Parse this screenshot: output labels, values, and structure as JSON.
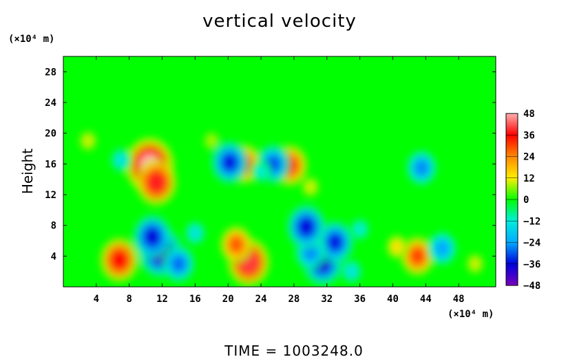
{
  "chart_data": {
    "type": "heatmap",
    "title": "vertical velocity",
    "ylabel": "Height",
    "xlabel": "",
    "y_unit": "(×10⁴ m)",
    "x_unit": "(×10⁴ m)",
    "footer": "TIME  =  1003248.0",
    "xlim": [
      0,
      52.5
    ],
    "ylim": [
      0,
      30
    ],
    "x_ticks": [
      4,
      8,
      12,
      16,
      20,
      24,
      28,
      32,
      36,
      40,
      44,
      48
    ],
    "y_ticks": [
      4,
      8,
      12,
      16,
      20,
      24,
      28
    ],
    "colorbar": {
      "range": [
        -48,
        48
      ],
      "ticks": [
        48,
        36,
        24,
        12,
        0,
        -12,
        -24,
        -36,
        -48
      ],
      "tick_labels": [
        "48",
        "36",
        "24",
        "12",
        "0",
        "−12",
        "−24",
        "−36",
        "−48"
      ],
      "colors": [
        "#ffb0b0",
        "#ff0000",
        "#ff8800",
        "#ffee00",
        "#00ff00",
        "#00eedd",
        "#00aaff",
        "#0000dd",
        "#7700bb"
      ]
    },
    "background_value": 0,
    "features": [
      {
        "x": 10.5,
        "y": 15.8,
        "value": 48
      },
      {
        "x": 11.3,
        "y": 13.6,
        "value": 38
      },
      {
        "x": 6.8,
        "y": 3.5,
        "value": 36
      },
      {
        "x": 22.5,
        "y": 3.2,
        "value": 40
      },
      {
        "x": 21.0,
        "y": 5.5,
        "value": 28
      },
      {
        "x": 43.0,
        "y": 4.0,
        "value": 30
      },
      {
        "x": 40.5,
        "y": 5.2,
        "value": 14
      },
      {
        "x": 22.0,
        "y": 16.0,
        "value": 30
      },
      {
        "x": 27.5,
        "y": 15.8,
        "value": 32
      },
      {
        "x": 11.8,
        "y": 4.5,
        "value": -42
      },
      {
        "x": 10.8,
        "y": 6.5,
        "value": -36
      },
      {
        "x": 14.0,
        "y": 3.0,
        "value": -28
      },
      {
        "x": 31.5,
        "y": 3.2,
        "value": -38
      },
      {
        "x": 33.0,
        "y": 5.8,
        "value": -34
      },
      {
        "x": 30.0,
        "y": 4.5,
        "value": -26
      },
      {
        "x": 29.5,
        "y": 7.8,
        "value": -36
      },
      {
        "x": 20.2,
        "y": 16.2,
        "value": -34
      },
      {
        "x": 25.5,
        "y": 16.0,
        "value": -30
      },
      {
        "x": 43.5,
        "y": 15.5,
        "value": -26
      },
      {
        "x": 46.0,
        "y": 5.0,
        "value": -24
      },
      {
        "x": 16.0,
        "y": 7.0,
        "value": -14
      },
      {
        "x": 36.0,
        "y": 7.5,
        "value": -12
      },
      {
        "x": 24.0,
        "y": 15.0,
        "value": -12
      },
      {
        "x": 7.0,
        "y": 16.5,
        "value": -14
      },
      {
        "x": 35.0,
        "y": 2.0,
        "value": -14
      },
      {
        "x": 3.0,
        "y": 19.0,
        "value": 10
      },
      {
        "x": 18.0,
        "y": 19.0,
        "value": 8
      },
      {
        "x": 30.0,
        "y": 13.0,
        "value": 10
      },
      {
        "x": 50.0,
        "y": 3.0,
        "value": 10
      }
    ]
  }
}
